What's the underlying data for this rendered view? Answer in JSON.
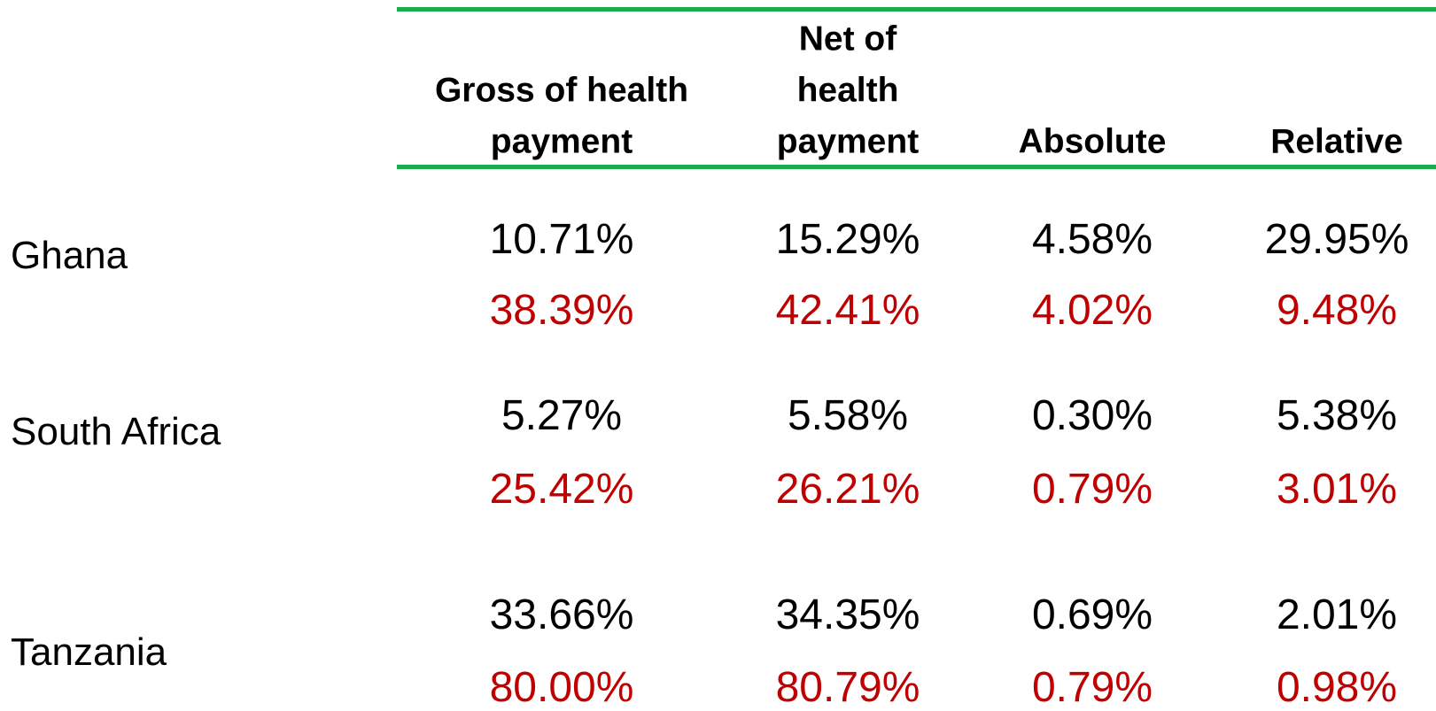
{
  "table": {
    "headers": [
      [
        "Gross of health",
        "payment"
      ],
      [
        "Net of",
        "health",
        "payment"
      ],
      [
        "Absolute"
      ],
      [
        "Relative"
      ]
    ],
    "rows": [
      {
        "country": "Ghana",
        "first": [
          "10.71%",
          "15.29%",
          "4.58%",
          "29.95%"
        ],
        "second": [
          "38.39%",
          "42.41%",
          "4.02%",
          "9.48%"
        ]
      },
      {
        "country": "South Africa",
        "first": [
          "5.27%",
          "5.58%",
          "0.30%",
          "5.38%"
        ],
        "second": [
          "25.42%",
          "26.21%",
          "0.79%",
          "3.01%"
        ]
      },
      {
        "country": "Tanzania",
        "first": [
          "33.66%",
          "34.35%",
          "0.69%",
          "2.01%"
        ],
        "second": [
          "80.00%",
          "80.79%",
          "0.79%",
          "0.98%"
        ]
      }
    ]
  }
}
